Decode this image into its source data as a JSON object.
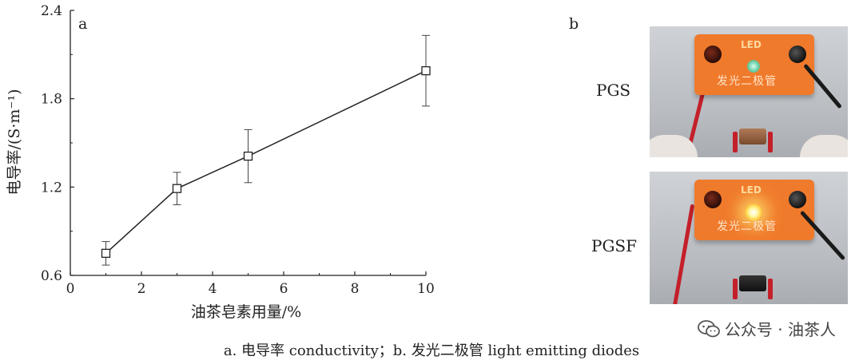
{
  "chart_data": {
    "type": "line",
    "panel_label": "a",
    "xlabel": "油茶皂素用量/%",
    "ylabel": "电导率/(S·m⁻¹)",
    "xlim": [
      0,
      10
    ],
    "ylim": [
      0.6,
      2.4
    ],
    "x_ticks": [
      "0",
      "2",
      "4",
      "6",
      "8",
      "10"
    ],
    "y_ticks": [
      "0.6",
      "1.2",
      "1.8",
      "2.4"
    ],
    "x": [
      1,
      3,
      5,
      10
    ],
    "series": [
      {
        "values": [
          0.75,
          1.19,
          1.41,
          1.99
        ],
        "errors": [
          0.08,
          0.11,
          0.18,
          0.24
        ]
      }
    ],
    "marker": "open-square",
    "grid": false
  },
  "photos": {
    "panel_label": "b",
    "items": [
      {
        "label": "PGS",
        "led_text": "LED",
        "box_text": "发光二极管"
      },
      {
        "label": "PGSF",
        "led_text": "LED",
        "box_text": "发光二极管"
      }
    ]
  },
  "caption": "a. 电导率 conductivity；b. 发光二极管 light emitting diodes",
  "watermark": {
    "icon": "wechat-icon",
    "text": "公众号 · 油茶人"
  }
}
